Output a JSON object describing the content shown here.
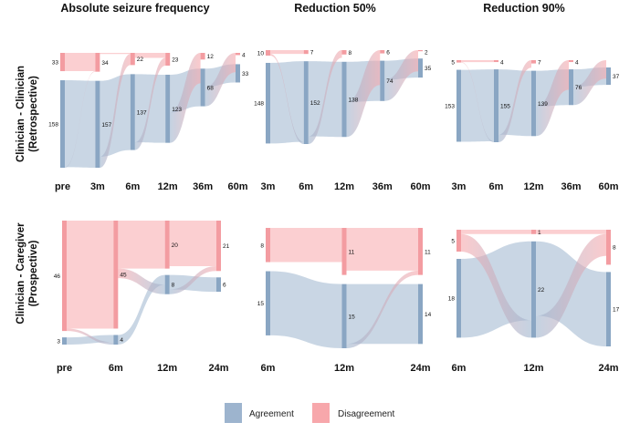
{
  "column_titles": [
    "Absolute seizure frequency",
    "Reduction 50%",
    "Reduction 90%"
  ],
  "row_labels": [
    [
      "Clinician - Clinician",
      "(Retrospective)"
    ],
    [
      "Clinician - Caregiver",
      "(Prospective)"
    ]
  ],
  "legend": {
    "agreement": "Agreement",
    "disagreement": "Disagreement",
    "agreement_color": "#9db4ce",
    "disagreement_color": "#f7a7ab"
  },
  "chart_data": [
    {
      "type": "sankey",
      "row": 0,
      "col": 0,
      "stages": [
        "pre",
        "3m",
        "6m",
        "12m",
        "36m",
        "60m"
      ],
      "disagreement": [
        33,
        34,
        22,
        23,
        12,
        4
      ],
      "agreement": [
        158,
        157,
        137,
        123,
        68,
        33
      ]
    },
    {
      "type": "sankey",
      "row": 0,
      "col": 1,
      "stages": [
        "3m",
        "6m",
        "12m",
        "36m",
        "60m"
      ],
      "disagreement": [
        10,
        7,
        8,
        6,
        2
      ],
      "agreement": [
        148,
        152,
        138,
        74,
        35
      ]
    },
    {
      "type": "sankey",
      "row": 0,
      "col": 2,
      "stages": [
        "3m",
        "6m",
        "12m",
        "36m",
        "60m"
      ],
      "disagreement": [
        5,
        4,
        7,
        4,
        null
      ],
      "agreement": [
        153,
        155,
        139,
        76,
        37
      ]
    },
    {
      "type": "sankey",
      "row": 1,
      "col": 0,
      "stages": [
        "pre",
        "6m",
        "12m",
        "24m"
      ],
      "disagreement": [
        46,
        45,
        20,
        21
      ],
      "agreement": [
        3,
        4,
        8,
        6
      ]
    },
    {
      "type": "sankey",
      "row": 1,
      "col": 1,
      "stages": [
        "6m",
        "12m",
        "24m"
      ],
      "disagreement": [
        8,
        11,
        11
      ],
      "agreement": [
        15,
        15,
        14
      ]
    },
    {
      "type": "sankey",
      "row": 1,
      "col": 2,
      "stages": [
        "6m",
        "12m",
        "24m"
      ],
      "disagreement": [
        5,
        1,
        8
      ],
      "agreement": [
        18,
        22,
        17
      ]
    }
  ]
}
